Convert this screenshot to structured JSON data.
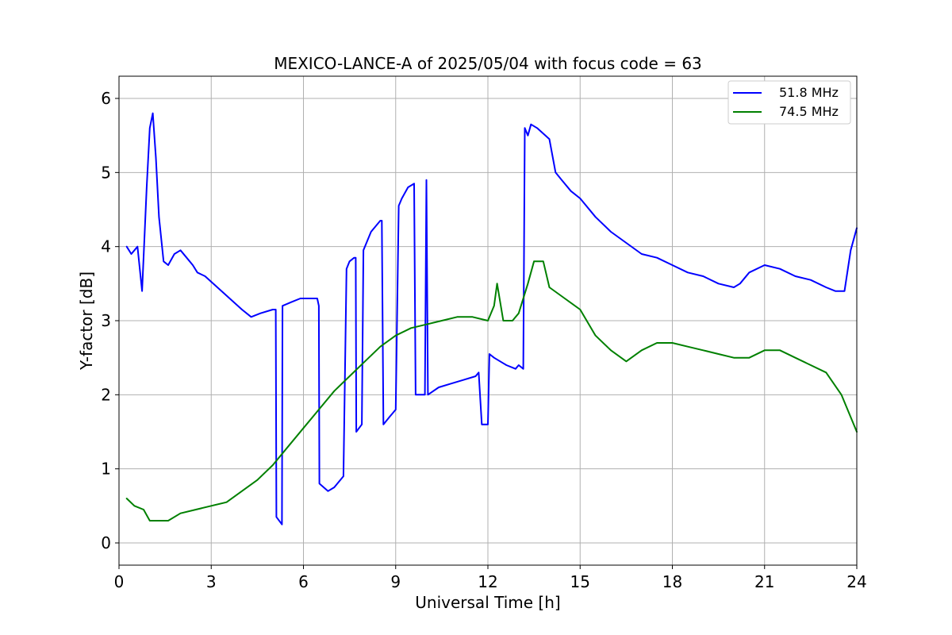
{
  "chart_data": {
    "type": "line",
    "title": "MEXICO-LANCE-A of 2025/05/04 with focus code = 63",
    "xlabel": "Universal Time [h]",
    "ylabel": "Y-factor [dB]",
    "xlim": [
      0,
      24
    ],
    "ylim": [
      -0.3,
      6.3
    ],
    "xticks": [
      0,
      3,
      6,
      9,
      12,
      15,
      18,
      21,
      24
    ],
    "yticks": [
      0,
      1,
      2,
      3,
      4,
      5,
      6
    ],
    "grid": true,
    "legend_position": "top-right",
    "series": [
      {
        "name": "51.8 MHz",
        "color": "#0000ff",
        "x": [
          0.25,
          0.4,
          0.6,
          0.75,
          0.9,
          1.0,
          1.1,
          1.2,
          1.3,
          1.45,
          1.6,
          1.8,
          2.0,
          2.2,
          2.4,
          2.55,
          2.8,
          3.2,
          3.6,
          4.0,
          4.3,
          4.6,
          5.0,
          5.1,
          5.12,
          5.3,
          5.32,
          5.6,
          5.9,
          6.2,
          6.45,
          6.5,
          6.52,
          6.8,
          7.0,
          7.3,
          7.4,
          7.5,
          7.65,
          7.7,
          7.72,
          7.9,
          7.95,
          8.2,
          8.5,
          8.55,
          8.6,
          8.8,
          9.0,
          9.1,
          9.2,
          9.4,
          9.6,
          9.65,
          9.8,
          9.95,
          10.0,
          10.05,
          10.4,
          10.8,
          11.2,
          11.6,
          11.7,
          11.8,
          12.0,
          12.05,
          12.2,
          12.6,
          12.9,
          13.0,
          13.15,
          13.2,
          13.3,
          13.4,
          13.6,
          14.0,
          14.2,
          14.4,
          14.7,
          15.0,
          15.5,
          16.0,
          16.5,
          17.0,
          17.5,
          18.0,
          18.5,
          19.0,
          19.5,
          20.0,
          20.2,
          20.5,
          21.0,
          21.5,
          22.0,
          22.5,
          23.0,
          23.3,
          23.5,
          23.6,
          23.8,
          24.0
        ],
        "values": [
          4.0,
          3.9,
          4.0,
          3.4,
          4.8,
          5.6,
          5.8,
          5.2,
          4.4,
          3.8,
          3.75,
          3.9,
          3.95,
          3.85,
          3.75,
          3.65,
          3.6,
          3.45,
          3.3,
          3.15,
          3.05,
          3.1,
          3.15,
          3.15,
          0.35,
          0.25,
          3.2,
          3.25,
          3.3,
          3.3,
          3.3,
          3.2,
          0.8,
          0.7,
          0.75,
          0.9,
          3.7,
          3.8,
          3.85,
          3.85,
          1.5,
          1.6,
          3.95,
          4.2,
          4.35,
          4.35,
          1.6,
          1.7,
          1.8,
          4.55,
          4.65,
          4.8,
          4.85,
          2.0,
          2.0,
          2.0,
          4.9,
          2.0,
          2.1,
          2.15,
          2.2,
          2.25,
          2.3,
          1.6,
          1.6,
          2.55,
          2.5,
          2.4,
          2.35,
          2.4,
          2.35,
          5.6,
          5.5,
          5.65,
          5.6,
          5.45,
          5.0,
          4.9,
          4.75,
          4.65,
          4.4,
          4.2,
          4.05,
          3.9,
          3.85,
          3.75,
          3.65,
          3.6,
          3.5,
          3.45,
          3.5,
          3.65,
          3.75,
          3.7,
          3.6,
          3.55,
          3.45,
          3.4,
          3.4,
          3.4,
          3.95,
          4.25
        ]
      },
      {
        "name": "74.5 MHz",
        "color": "#008000",
        "x": [
          0.25,
          0.5,
          0.8,
          1.0,
          1.3,
          1.6,
          2.0,
          2.5,
          3.0,
          3.5,
          4.0,
          4.5,
          5.0,
          5.5,
          6.0,
          6.5,
          7.0,
          7.5,
          8.0,
          8.5,
          9.0,
          9.5,
          10.0,
          10.5,
          11.0,
          11.5,
          12.0,
          12.2,
          12.3,
          12.5,
          12.8,
          13.0,
          13.3,
          13.5,
          13.8,
          14.0,
          14.5,
          15.0,
          15.5,
          16.0,
          16.5,
          17.0,
          17.5,
          18.0,
          18.5,
          19.0,
          19.5,
          20.0,
          20.5,
          21.0,
          21.5,
          22.0,
          22.5,
          23.0,
          23.5,
          24.0
        ],
        "values": [
          0.6,
          0.5,
          0.45,
          0.3,
          0.3,
          0.3,
          0.4,
          0.45,
          0.5,
          0.55,
          0.7,
          0.85,
          1.05,
          1.3,
          1.55,
          1.8,
          2.05,
          2.25,
          2.45,
          2.65,
          2.8,
          2.9,
          2.95,
          3.0,
          3.05,
          3.05,
          3.0,
          3.2,
          3.5,
          3.0,
          3.0,
          3.1,
          3.5,
          3.8,
          3.8,
          3.45,
          3.3,
          3.15,
          2.8,
          2.6,
          2.45,
          2.6,
          2.7,
          2.7,
          2.65,
          2.6,
          2.55,
          2.5,
          2.5,
          2.6,
          2.6,
          2.5,
          2.4,
          2.3,
          2.0,
          1.5
        ]
      }
    ]
  }
}
